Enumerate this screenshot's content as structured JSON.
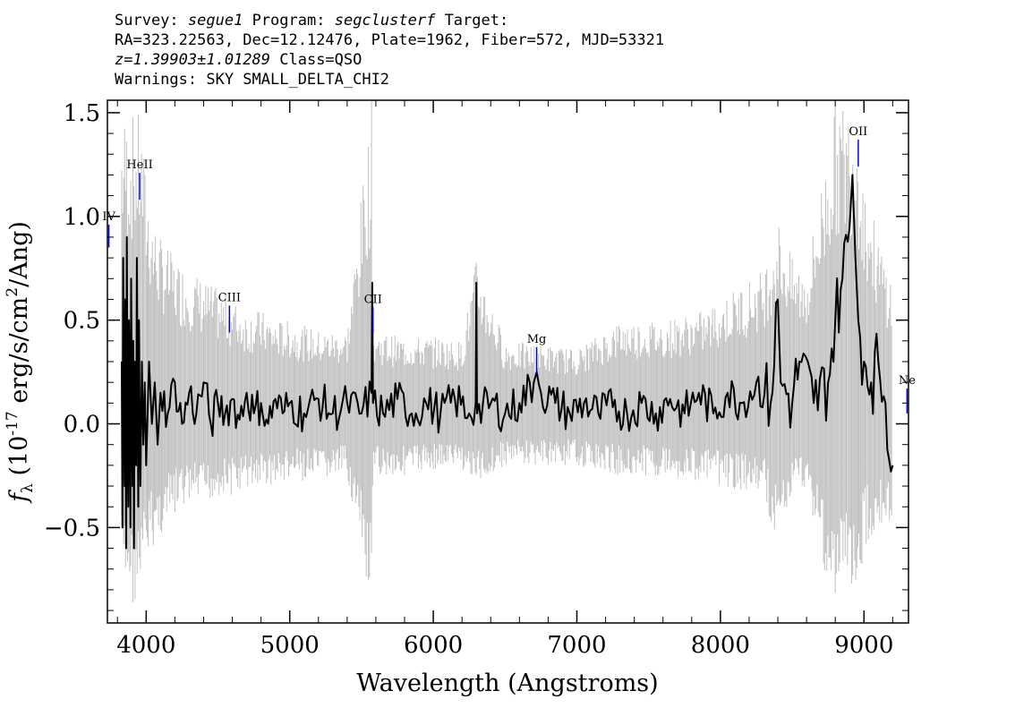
{
  "header": {
    "survey_label": "Survey:",
    "survey": "segue1",
    "program_label": "Program:",
    "program": "segclusterf",
    "target_label": "Target:",
    "line2": "RA=323.22563, Dec=12.12476, Plate=1962, Fiber=572, MJD=53321",
    "redshift": "z=1.39903±1.01289",
    "class_text": "Class=QSO",
    "warnings": "Warnings: SKY SMALL_DELTA_CHI2"
  },
  "chart_data": {
    "type": "line",
    "xlabel": "Wavelength (Angstroms)",
    "ylabel_prefix": "f",
    "ylabel_sub": "λ",
    "ylabel_rest": " (10",
    "ylabel_sup": "-17",
    "ylabel_tail": " erg/s/cm",
    "ylabel_sup2": "2",
    "ylabel_end": "/Ang)",
    "xlim": [
      3730,
      9310
    ],
    "ylim": [
      -0.96,
      1.56
    ],
    "x_ticks": [
      4000,
      5000,
      6000,
      7000,
      8000,
      9000
    ],
    "x_tick_labels": [
      "4000",
      "5000",
      "6000",
      "7000",
      "8000",
      "9000"
    ],
    "y_ticks": [
      -0.5,
      0.0,
      0.5,
      1.0,
      1.5
    ],
    "y_tick_labels": [
      "−0.5",
      "0.0",
      "0.5",
      "1.0",
      "1.5"
    ],
    "series": [
      {
        "role": "error",
        "color": "#c0c0c0",
        "points": [
          [
            3830,
            -0.6,
            1.5
          ],
          [
            3850,
            -0.9,
            1.5
          ],
          [
            3870,
            -0.8,
            1.5
          ],
          [
            3900,
            -0.9,
            1.5
          ],
          [
            3930,
            -0.85,
            1.5
          ],
          [
            3960,
            -0.9,
            1.5
          ],
          [
            4000,
            -0.7,
            1.2
          ],
          [
            4050,
            -0.6,
            1.0
          ],
          [
            4100,
            -0.55,
            0.9
          ],
          [
            4150,
            -0.5,
            0.85
          ],
          [
            4200,
            -0.45,
            0.8
          ],
          [
            4300,
            -0.4,
            0.75
          ],
          [
            4400,
            -0.4,
            0.7
          ],
          [
            4500,
            -0.35,
            0.65
          ],
          [
            4600,
            -0.35,
            0.6
          ],
          [
            4700,
            -0.32,
            0.55
          ],
          [
            4800,
            -0.3,
            0.55
          ],
          [
            4900,
            -0.3,
            0.5
          ],
          [
            5000,
            -0.28,
            0.5
          ],
          [
            5200,
            -0.28,
            0.45
          ],
          [
            5400,
            -0.25,
            0.45
          ],
          [
            5570,
            -0.95,
            1.56
          ],
          [
            5585,
            -0.25,
            0.45
          ],
          [
            5800,
            -0.25,
            0.42
          ],
          [
            6000,
            -0.22,
            0.42
          ],
          [
            6200,
            -0.22,
            0.4
          ],
          [
            6300,
            -0.3,
            0.8
          ],
          [
            6500,
            -0.2,
            0.4
          ],
          [
            6800,
            -0.2,
            0.38
          ],
          [
            7000,
            -0.2,
            0.36
          ],
          [
            7300,
            -0.25,
            0.5
          ],
          [
            7600,
            -0.25,
            0.5
          ],
          [
            7900,
            -0.28,
            0.55
          ],
          [
            8000,
            -0.3,
            0.6
          ],
          [
            8300,
            -0.35,
            0.75
          ],
          [
            8400,
            -0.6,
            1.0
          ],
          [
            8500,
            -0.35,
            0.8
          ],
          [
            8600,
            -0.3,
            0.75
          ],
          [
            8800,
            -0.95,
            1.56
          ],
          [
            8900,
            -0.7,
            1.56
          ],
          [
            8950,
            -0.95,
            1.56
          ],
          [
            9000,
            -0.6,
            1.2
          ],
          [
            9100,
            -0.5,
            0.9
          ],
          [
            9200,
            -0.5,
            0.7
          ]
        ]
      },
      {
        "role": "flux",
        "color": "#000000",
        "points": [
          [
            3830,
            0.3
          ],
          [
            3835,
            -0.5
          ],
          [
            3840,
            0.8
          ],
          [
            3845,
            0.1
          ],
          [
            3850,
            -0.3
          ],
          [
            3855,
            0.6
          ],
          [
            3860,
            -0.6
          ],
          [
            3865,
            0.9
          ],
          [
            3870,
            0.0
          ],
          [
            3875,
            -0.4
          ],
          [
            3880,
            0.5
          ],
          [
            3885,
            0.2
          ],
          [
            3890,
            -0.5
          ],
          [
            3895,
            0.7
          ],
          [
            3900,
            0.1
          ],
          [
            3905,
            -0.3
          ],
          [
            3910,
            0.4
          ],
          [
            3915,
            -0.6
          ],
          [
            3920,
            0.3
          ],
          [
            3925,
            0.0
          ],
          [
            3930,
            -0.2
          ],
          [
            3935,
            0.8
          ],
          [
            3940,
            0.2
          ],
          [
            3945,
            -0.4
          ],
          [
            3950,
            0.5
          ],
          [
            3955,
            0.0
          ],
          [
            3960,
            -0.3
          ],
          [
            3970,
            0.3
          ],
          [
            3980,
            -0.1
          ],
          [
            3990,
            0.2
          ],
          [
            4000,
            -0.2
          ],
          [
            4020,
            0.3
          ],
          [
            4040,
            0.0
          ],
          [
            4060,
            0.2
          ],
          [
            4080,
            -0.1
          ],
          [
            4100,
            0.15
          ],
          [
            4150,
            0.05
          ],
          [
            4200,
            0.2
          ],
          [
            4250,
            0.0
          ],
          [
            4300,
            0.15
          ],
          [
            4350,
            0.05
          ],
          [
            4400,
            0.2
          ],
          [
            4450,
            0.0
          ],
          [
            4500,
            0.1
          ],
          [
            4550,
            0.05
          ],
          [
            4600,
            0.12
          ],
          [
            4650,
            0.02
          ],
          [
            4700,
            0.15
          ],
          [
            4750,
            0.05
          ],
          [
            4800,
            0.1
          ],
          [
            4850,
            0.0
          ],
          [
            4900,
            0.12
          ],
          [
            4950,
            0.05
          ],
          [
            5000,
            0.1
          ],
          [
            5100,
            0.05
          ],
          [
            5200,
            0.12
          ],
          [
            5300,
            0.05
          ],
          [
            5400,
            0.1
          ],
          [
            5500,
            0.05
          ],
          [
            5570,
            0.15
          ],
          [
            5575,
            0.68
          ],
          [
            5580,
            0.1
          ],
          [
            5650,
            0.05
          ],
          [
            5750,
            0.12
          ],
          [
            5850,
            0.05
          ],
          [
            5950,
            0.1
          ],
          [
            6050,
            0.05
          ],
          [
            6150,
            0.12
          ],
          [
            6250,
            0.05
          ],
          [
            6295,
            0.1
          ],
          [
            6300,
            0.68
          ],
          [
            6305,
            0.05
          ],
          [
            6400,
            0.1
          ],
          [
            6500,
            0.05
          ],
          [
            6600,
            0.1
          ],
          [
            6700,
            0.2
          ],
          [
            6720,
            0.25
          ],
          [
            6750,
            0.15
          ],
          [
            6850,
            0.1
          ],
          [
            6950,
            0.05
          ],
          [
            7050,
            0.1
          ],
          [
            7150,
            0.05
          ],
          [
            7250,
            0.08
          ],
          [
            7350,
            0.05
          ],
          [
            7450,
            0.1
          ],
          [
            7550,
            0.05
          ],
          [
            7650,
            0.12
          ],
          [
            7750,
            0.05
          ],
          [
            7850,
            0.15
          ],
          [
            7950,
            0.05
          ],
          [
            8050,
            0.15
          ],
          [
            8150,
            0.1
          ],
          [
            8250,
            0.2
          ],
          [
            8350,
            0.1
          ],
          [
            8400,
            0.6
          ],
          [
            8420,
            0.2
          ],
          [
            8500,
            0.1
          ],
          [
            8550,
            0.3
          ],
          [
            8650,
            0.1
          ],
          [
            8750,
            0.2
          ],
          [
            8800,
            0.5
          ],
          [
            8850,
            0.7
          ],
          [
            8900,
            0.95
          ],
          [
            8920,
            1.2
          ],
          [
            8940,
            0.8
          ],
          [
            8960,
            0.5
          ],
          [
            9000,
            0.3
          ],
          [
            9050,
            0.2
          ],
          [
            9100,
            0.3
          ],
          [
            9150,
            0.1
          ],
          [
            9200,
            -0.2
          ]
        ]
      }
    ],
    "line_markers": [
      {
        "label": "IV",
        "x": 3740,
        "top": 0.96,
        "bottom": 0.85
      },
      {
        "label": "HeII",
        "x": 3955,
        "top": 1.21,
        "bottom": 1.08
      },
      {
        "label": "CIII",
        "x": 4580,
        "top": 0.57,
        "bottom": 0.44
      },
      {
        "label": "CII",
        "x": 5580,
        "top": 0.56,
        "bottom": 0.43
      },
      {
        "label": "Mg",
        "x": 6720,
        "top": 0.37,
        "bottom": 0.24
      },
      {
        "label": "OII",
        "x": 8960,
        "top": 1.37,
        "bottom": 1.24
      },
      {
        "label": "Ne",
        "x": 9300,
        "top": 0.17,
        "bottom": 0.05
      }
    ],
    "marker_color": "#0000ee",
    "grid": false,
    "legend": "none"
  }
}
